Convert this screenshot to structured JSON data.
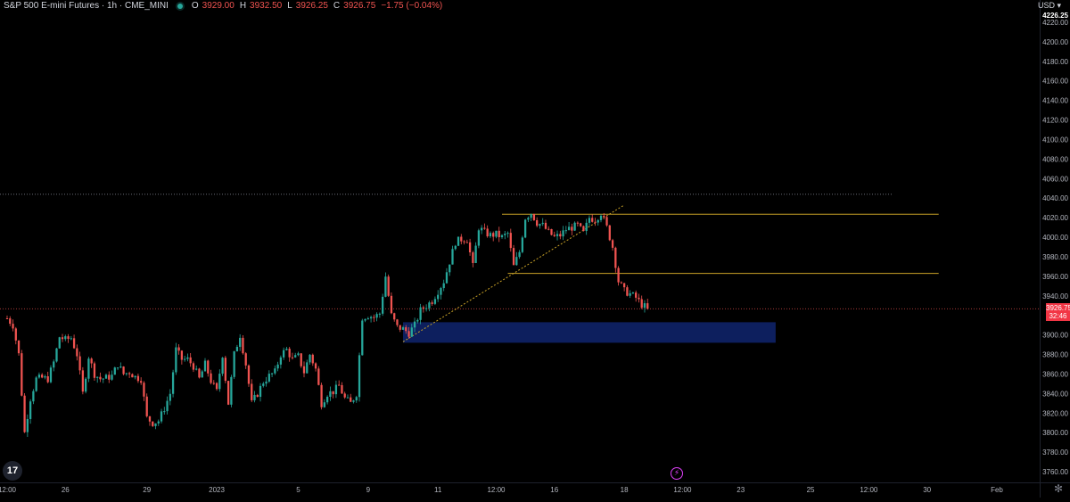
{
  "legend": {
    "symbol": "S&P 500 E-mini Futures · 1h · CME_MINI",
    "open_key": "O",
    "open": "3929.00",
    "high_key": "H",
    "high": "3932.50",
    "low_key": "L",
    "low": "3926.25",
    "close_key": "C",
    "close": "3926.75",
    "change": "−1.75 (−0.04%)"
  },
  "currency": "USD ▾",
  "last_price": {
    "price": "3926.75",
    "countdown": "32:46"
  },
  "colors": {
    "up": "#26a69a",
    "down": "#ef5350",
    "level": "#c9a227",
    "zone": "#0d1f5e",
    "trendline": "#c9a227"
  },
  "icons": [
    "tradingview-logo-icon",
    "event-lightning-icon",
    "settings-gear-icon"
  ],
  "chart_data": {
    "type": "candlestick",
    "title": "S&P 500 E-mini Futures · 1h · CME_MINI",
    "ylim": [
      3750,
      4230
    ],
    "y_ticks": [
      3760,
      3780,
      3800,
      3820,
      3840,
      3860,
      3880,
      3900,
      3920,
      3940,
      3960,
      3980,
      4000,
      4020,
      4040,
      4060,
      4080,
      4100,
      4120,
      4140,
      4160,
      4180,
      4200,
      4220
    ],
    "y_tick_labels": [
      "3760.00",
      "3780.00",
      "3800.00",
      "3820.00",
      "3840.00",
      "3860.00",
      "3880.00",
      "3900.00",
      "",
      "3940.00",
      "3960.00",
      "3980.00",
      "4000.00",
      "4020.00",
      "4040.00",
      "4060.00",
      "4080.00",
      "4100.00",
      "4120.00",
      "4140.00",
      "4160.00",
      "4180.00",
      "4200.00",
      "4220.00"
    ],
    "y_top_label": "4226.25",
    "x_ticks": [
      {
        "label": "12:00",
        "t": 0
      },
      {
        "label": "26",
        "t": 10
      },
      {
        "label": "29",
        "t": 24
      },
      {
        "label": "2023",
        "t": 36
      },
      {
        "label": "5",
        "t": 50
      },
      {
        "label": "9",
        "t": 62
      },
      {
        "label": "11",
        "t": 74
      },
      {
        "label": "12:00",
        "t": 84
      },
      {
        "label": "16",
        "t": 94
      },
      {
        "label": "18",
        "t": 106
      },
      {
        "label": "12:00",
        "t": 116
      },
      {
        "label": "23",
        "t": 126
      },
      {
        "label": "25",
        "t": 138
      },
      {
        "label": "12:00",
        "t": 148
      },
      {
        "label": "30",
        "t": 158
      },
      {
        "label": "Feb",
        "t": 170
      }
    ],
    "path": [
      [
        0,
        3917
      ],
      [
        1,
        3910
      ],
      [
        2,
        3880
      ],
      [
        3,
        3800
      ],
      [
        4,
        3835
      ],
      [
        5,
        3855
      ],
      [
        6,
        3856
      ],
      [
        7,
        3855
      ],
      [
        8,
        3872
      ],
      [
        9,
        3898
      ],
      [
        10,
        3895
      ],
      [
        11,
        3897
      ],
      [
        12,
        3880
      ],
      [
        13,
        3840
      ],
      [
        14,
        3878
      ],
      [
        15,
        3860
      ],
      [
        16,
        3855
      ],
      [
        17,
        3856
      ],
      [
        18,
        3858
      ],
      [
        19,
        3870
      ],
      [
        20,
        3860
      ],
      [
        21,
        3862
      ],
      [
        22,
        3857
      ],
      [
        23,
        3855
      ],
      [
        24,
        3815
      ],
      [
        25,
        3810
      ],
      [
        26,
        3812
      ],
      [
        27,
        3825
      ],
      [
        28,
        3840
      ],
      [
        29,
        3885
      ],
      [
        30,
        3875
      ],
      [
        31,
        3875
      ],
      [
        32,
        3868
      ],
      [
        33,
        3855
      ],
      [
        34,
        3870
      ],
      [
        35,
        3853
      ],
      [
        36,
        3842
      ],
      [
        37,
        3880
      ],
      [
        38,
        3830
      ],
      [
        39,
        3880
      ],
      [
        40,
        3900
      ],
      [
        41,
        3870
      ],
      [
        42,
        3830
      ],
      [
        43,
        3840
      ],
      [
        44,
        3852
      ],
      [
        45,
        3858
      ],
      [
        46,
        3862
      ],
      [
        47,
        3880
      ],
      [
        48,
        3885
      ],
      [
        49,
        3875
      ],
      [
        50,
        3878
      ],
      [
        51,
        3862
      ],
      [
        52,
        3880
      ],
      [
        53,
        3865
      ],
      [
        54,
        3830
      ],
      [
        55,
        3840
      ],
      [
        56,
        3842
      ],
      [
        57,
        3848
      ],
      [
        58,
        3835
      ],
      [
        59,
        3830
      ],
      [
        60,
        3840
      ],
      [
        61,
        3918
      ],
      [
        62,
        3920
      ],
      [
        63,
        3918
      ],
      [
        64,
        3922
      ],
      [
        65,
        3960
      ],
      [
        66,
        3920
      ],
      [
        67,
        3908
      ],
      [
        68,
        3906
      ],
      [
        69,
        3902
      ],
      [
        70,
        3910
      ],
      [
        71,
        3925
      ],
      [
        72,
        3930
      ],
      [
        73,
        3935
      ],
      [
        74,
        3945
      ],
      [
        75,
        3955
      ],
      [
        76,
        3975
      ],
      [
        77,
        3995
      ],
      [
        78,
        3998
      ],
      [
        79,
        3998
      ],
      [
        80,
        3970
      ],
      [
        81,
        4010
      ],
      [
        82,
        4005
      ],
      [
        83,
        4002
      ],
      [
        84,
        4003
      ],
      [
        85,
        4000
      ],
      [
        86,
        4004
      ],
      [
        87,
        3970
      ],
      [
        88,
        3985
      ],
      [
        89,
        4020
      ],
      [
        90,
        4025
      ],
      [
        91,
        4015
      ],
      [
        92,
        4012
      ],
      [
        93,
        4005
      ],
      [
        94,
        4000
      ],
      [
        95,
        4002
      ],
      [
        96,
        4008
      ],
      [
        97,
        4010
      ],
      [
        98,
        4012
      ],
      [
        99,
        4004
      ],
      [
        100,
        4020
      ],
      [
        101,
        4018
      ],
      [
        102,
        4025
      ],
      [
        103,
        4010
      ],
      [
        104,
        3990
      ],
      [
        105,
        3955
      ],
      [
        106,
        3945
      ],
      [
        107,
        3942
      ],
      [
        108,
        3938
      ],
      [
        109,
        3931
      ],
      [
        110,
        3927
      ]
    ],
    "last_price": 3926.75,
    "resistance_dotted": 4044,
    "levels": [
      {
        "y": 4023.5,
        "t_start": 85,
        "t_end": 160
      },
      {
        "y": 3963,
        "t_start": 86,
        "t_end": 160
      }
    ],
    "zone": {
      "y_low": 3892,
      "y_high": 3913,
      "t_start": 68,
      "t_end": 132
    },
    "trendline": {
      "t1": 68,
      "y1": 3893,
      "t2": 106,
      "y2": 4033
    }
  }
}
